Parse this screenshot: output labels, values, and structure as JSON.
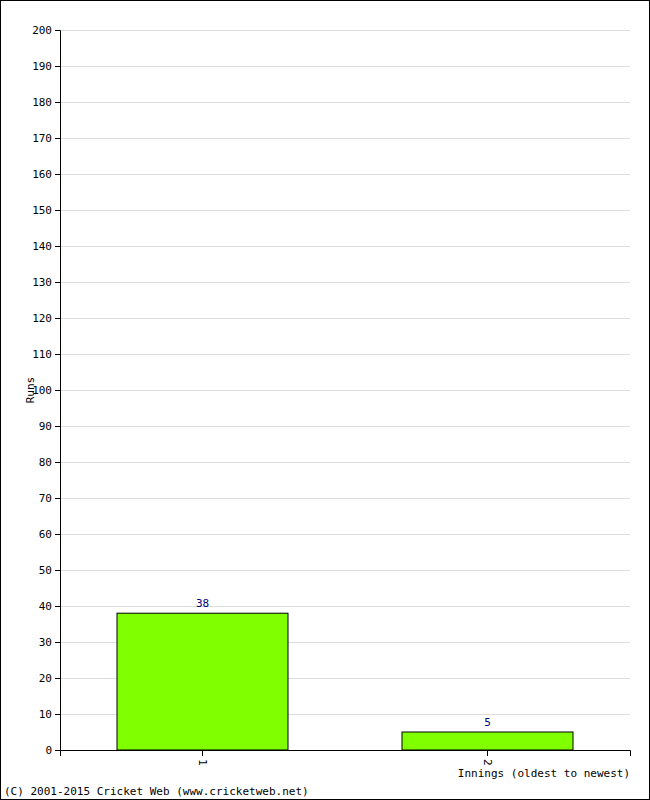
{
  "chart_data": {
    "type": "bar",
    "y_label": "Runs",
    "x_label": "Innings (oldest to newest)",
    "annotations": [
      "(C) 2001-2015 Cricket Web (www.cricketweb.net)"
    ],
    "categories": [
      "1",
      "2"
    ],
    "values": [
      38,
      5
    ],
    "color": "#7fff00",
    "data_labels": true,
    "ylim": [
      0,
      200
    ],
    "yticks": [
      0,
      10,
      20,
      30,
      40,
      50,
      60,
      70,
      80,
      90,
      100,
      110,
      120,
      130,
      140,
      150,
      160,
      170,
      180,
      190,
      200
    ],
    "grid": true
  }
}
